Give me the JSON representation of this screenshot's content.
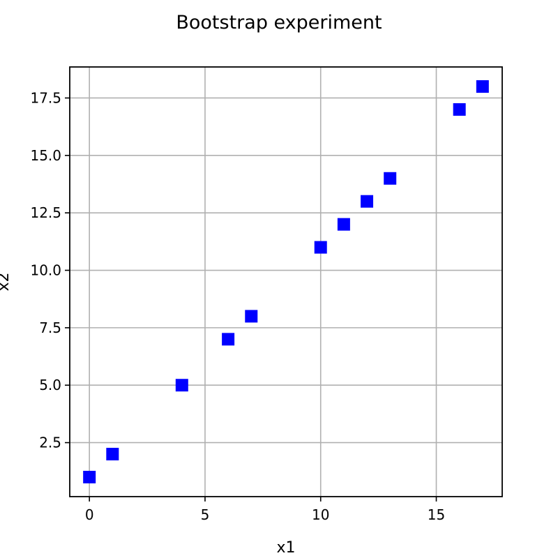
{
  "chart_data": {
    "type": "scatter",
    "title": "Bootstrap experiment",
    "xlabel": "x1",
    "ylabel": "x2",
    "xlim": [
      -0.85,
      17.85
    ],
    "ylim": [
      0.15,
      18.85
    ],
    "xticks": [
      0,
      5,
      10,
      15
    ],
    "xtick_labels": [
      "0",
      "5",
      "10",
      "15"
    ],
    "yticks": [
      2.5,
      5.0,
      7.5,
      10.0,
      12.5,
      15.0,
      17.5
    ],
    "ytick_labels": [
      "2.5",
      "5.0",
      "7.5",
      "10.0",
      "12.5",
      "15.0",
      "17.5"
    ],
    "grid": true,
    "marker": "square",
    "color": "#0000ff",
    "series": [
      {
        "x": [
          0,
          1,
          4,
          6,
          7,
          10,
          11,
          12,
          13,
          16,
          17
        ],
        "y": [
          1,
          2,
          5,
          7,
          8,
          11,
          12,
          13,
          14,
          17,
          18
        ]
      }
    ]
  }
}
